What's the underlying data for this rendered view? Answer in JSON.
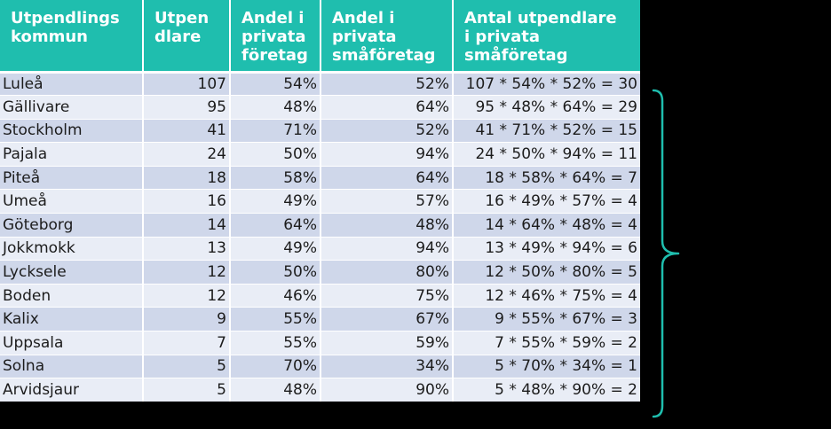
{
  "table": {
    "headers": [
      [
        "Utpendlings",
        "kommun"
      ],
      [
        "Utpen",
        "dlare"
      ],
      [
        "Andel i",
        "privata",
        "företag"
      ],
      [
        "Andel i",
        "privata",
        "småföretag"
      ],
      [
        "Antal utpendlare",
        "i privata",
        "småföretag"
      ]
    ],
    "rows": [
      {
        "kommun": "Luleå",
        "utpendlare": "107",
        "andel_privata": "54%",
        "andel_smaforetag": "52%",
        "antal": "107 * 54% * 52% = 30"
      },
      {
        "kommun": "Gällivare",
        "utpendlare": "95",
        "andel_privata": "48%",
        "andel_smaforetag": "64%",
        "antal": "95 * 48% * 64% = 29"
      },
      {
        "kommun": "Stockholm",
        "utpendlare": "41",
        "andel_privata": "71%",
        "andel_smaforetag": "52%",
        "antal": "41 * 71% * 52% = 15"
      },
      {
        "kommun": "Pajala",
        "utpendlare": "24",
        "andel_privata": "50%",
        "andel_smaforetag": "94%",
        "antal": "24 * 50% * 94% = 11"
      },
      {
        "kommun": "Piteå",
        "utpendlare": "18",
        "andel_privata": "58%",
        "andel_smaforetag": "64%",
        "antal": "18 * 58% * 64% = 7"
      },
      {
        "kommun": "Umeå",
        "utpendlare": "16",
        "andel_privata": "49%",
        "andel_smaforetag": "57%",
        "antal": "16 * 49% * 57% = 4"
      },
      {
        "kommun": "Göteborg",
        "utpendlare": "14",
        "andel_privata": "64%",
        "andel_smaforetag": "48%",
        "antal": "14 * 64% * 48% = 4"
      },
      {
        "kommun": "Jokkmokk",
        "utpendlare": "13",
        "andel_privata": "49%",
        "andel_smaforetag": "94%",
        "antal": "13 * 49% * 94% = 6"
      },
      {
        "kommun": "Lycksele",
        "utpendlare": "12",
        "andel_privata": "50%",
        "andel_smaforetag": "80%",
        "antal": "12 * 50% * 80% = 5"
      },
      {
        "kommun": "Boden",
        "utpendlare": "12",
        "andel_privata": "46%",
        "andel_smaforetag": "75%",
        "antal": "12 * 46% * 75% = 4"
      },
      {
        "kommun": "Kalix",
        "utpendlare": "9",
        "andel_privata": "55%",
        "andel_smaforetag": "67%",
        "antal": "9 * 55% * 67% = 3"
      },
      {
        "kommun": "Uppsala",
        "utpendlare": "7",
        "andel_privata": "55%",
        "andel_smaforetag": "59%",
        "antal": "7 * 55% * 59% = 2"
      },
      {
        "kommun": "Solna",
        "utpendlare": "5",
        "andel_privata": "70%",
        "andel_smaforetag": "34%",
        "antal": "5 * 70% * 34% = 1"
      },
      {
        "kommun": "Arvidsjaur",
        "utpendlare": "5",
        "andel_privata": "48%",
        "andel_smaforetag": "90%",
        "antal": "5 * 48% * 90% = 2"
      }
    ]
  },
  "colors": {
    "header_bg": "#1fbeae",
    "row_dark": "#cfd7ea",
    "row_light": "#e9edf6",
    "brace": "#1fbeae",
    "background": "#000000"
  },
  "icons": {
    "brace": "right-curly-brace-icon"
  }
}
